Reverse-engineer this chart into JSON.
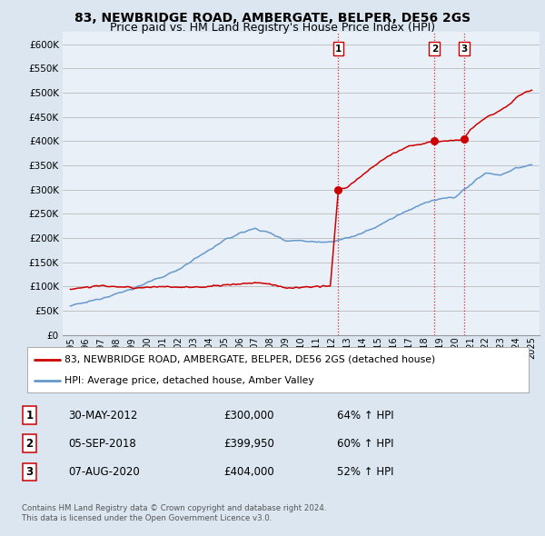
{
  "title": "83, NEWBRIDGE ROAD, AMBERGATE, BELPER, DE56 2GS",
  "subtitle": "Price paid vs. HM Land Registry's House Price Index (HPI)",
  "legend_line1": "83, NEWBRIDGE ROAD, AMBERGATE, BELPER, DE56 2GS (detached house)",
  "legend_line2": "HPI: Average price, detached house, Amber Valley",
  "footer1": "Contains HM Land Registry data © Crown copyright and database right 2024.",
  "footer2": "This data is licensed under the Open Government Licence v3.0.",
  "transactions": [
    {
      "num": "1",
      "date": "30-MAY-2012",
      "price": "£300,000",
      "hpi": "64% ↑ HPI",
      "x": 2012.42
    },
    {
      "num": "2",
      "date": "05-SEP-2018",
      "price": "£399,950",
      "hpi": "60% ↑ HPI",
      "x": 2018.67
    },
    {
      "num": "3",
      "date": "07-AUG-2020",
      "price": "£404,000",
      "hpi": "52% ↑ HPI",
      "x": 2020.58
    }
  ],
  "transaction_values": [
    300000,
    399950,
    404000
  ],
  "red_color": "#cc0000",
  "blue_color": "#6699cc",
  "bg_color": "#dce6f0",
  "plot_bg": "#eaf0f8",
  "grid_color": "#bbbbbb",
  "ylim": [
    0,
    625000
  ],
  "xlim": [
    1994.5,
    2025.5
  ],
  "yticks": [
    0,
    50000,
    100000,
    150000,
    200000,
    250000,
    300000,
    350000,
    400000,
    450000,
    500000,
    550000,
    600000
  ],
  "ytick_labels": [
    "£0",
    "£50K",
    "£100K",
    "£150K",
    "£200K",
    "£250K",
    "£300K",
    "£350K",
    "£400K",
    "£450K",
    "£500K",
    "£550K",
    "£600K"
  ],
  "xticks": [
    1995,
    1996,
    1997,
    1998,
    1999,
    2000,
    2001,
    2002,
    2003,
    2004,
    2005,
    2006,
    2007,
    2008,
    2009,
    2010,
    2011,
    2012,
    2013,
    2014,
    2015,
    2016,
    2017,
    2018,
    2019,
    2020,
    2021,
    2022,
    2023,
    2024,
    2025
  ],
  "vline_color": "#cc0000",
  "vline_style": ":",
  "title_fontsize": 10,
  "subtitle_fontsize": 9
}
